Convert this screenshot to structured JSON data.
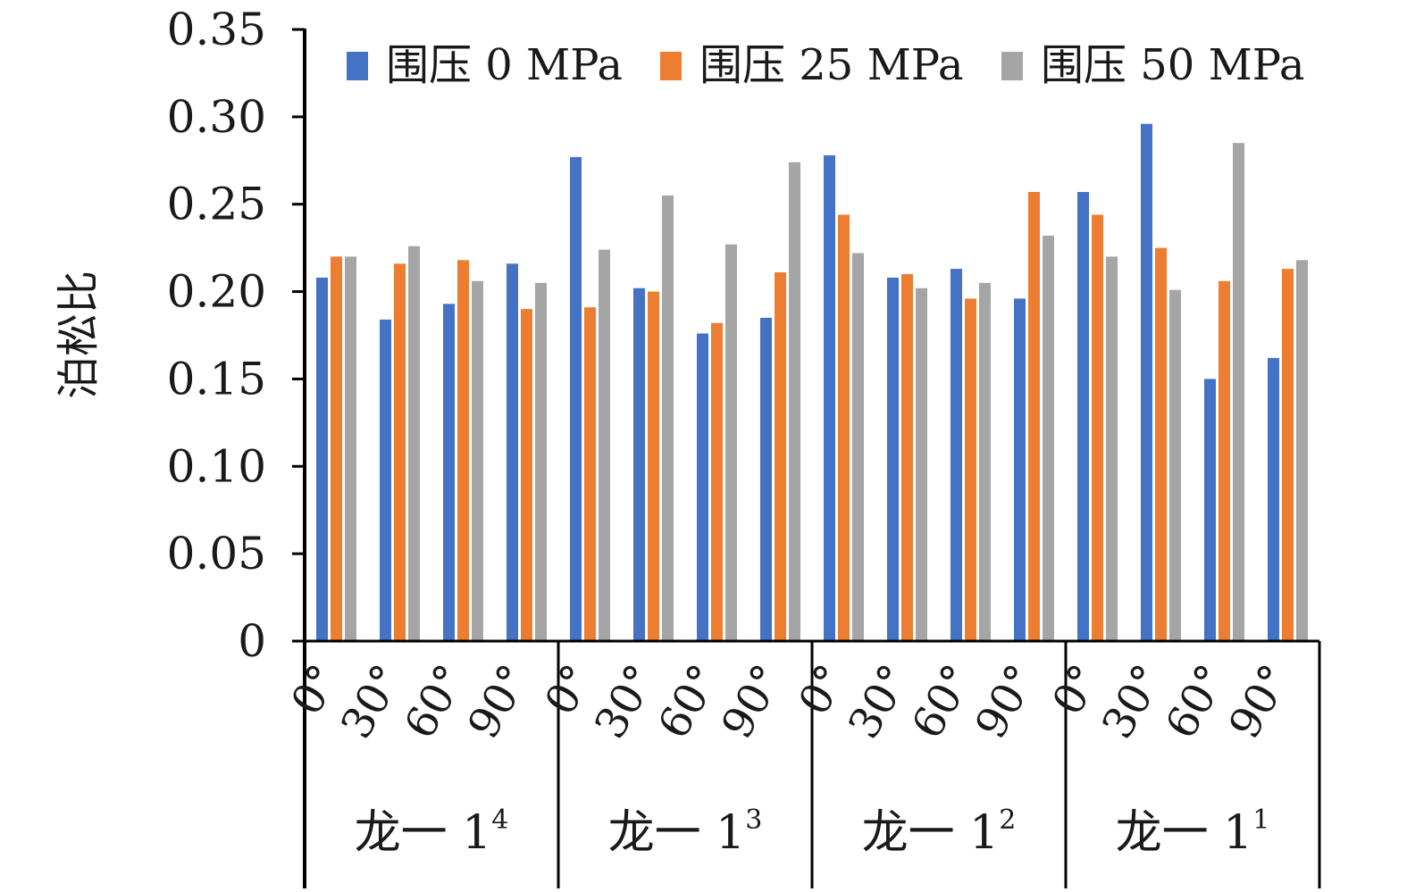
{
  "chart_data": {
    "type": "bar",
    "ylabel": "泊松比",
    "ylim": [
      0,
      0.35
    ],
    "y_ticks": [
      {
        "value": 0,
        "label": "0"
      },
      {
        "value": 0.05,
        "label": "0.05"
      },
      {
        "value": 0.1,
        "label": "0.10"
      },
      {
        "value": 0.15,
        "label": "0.15"
      },
      {
        "value": 0.2,
        "label": "0.20"
      },
      {
        "value": 0.25,
        "label": "0.25"
      },
      {
        "value": 0.3,
        "label": "0.30"
      },
      {
        "value": 0.35,
        "label": "0.35"
      }
    ],
    "legend_position": "top",
    "groups": [
      {
        "base": "龙一 1",
        "sup": "4"
      },
      {
        "base": "龙一 1",
        "sup": "3"
      },
      {
        "base": "龙一 1",
        "sup": "2"
      },
      {
        "base": "龙一 1",
        "sup": "1"
      }
    ],
    "angles": [
      "0°",
      "30°",
      "60°",
      "90°"
    ],
    "series": [
      {
        "name": "围压 0 MPa",
        "color": "#4472C4",
        "values": [
          0.208,
          0.184,
          0.193,
          0.216,
          0.277,
          0.202,
          0.176,
          0.185,
          0.278,
          0.208,
          0.213,
          0.196,
          0.257,
          0.296,
          0.15,
          0.162
        ]
      },
      {
        "name": "围压 25 MPa",
        "color": "#ED7D31",
        "values": [
          0.22,
          0.216,
          0.218,
          0.19,
          0.191,
          0.2,
          0.182,
          0.211,
          0.244,
          0.21,
          0.196,
          0.257,
          0.244,
          0.225,
          0.206,
          0.213
        ]
      },
      {
        "name": "围压 50 MPa",
        "color": "#A5A5A5",
        "values": [
          0.22,
          0.226,
          0.206,
          0.205,
          0.224,
          0.255,
          0.227,
          0.274,
          0.222,
          0.202,
          0.205,
          0.232,
          0.22,
          0.201,
          0.285,
          0.218
        ]
      }
    ]
  }
}
